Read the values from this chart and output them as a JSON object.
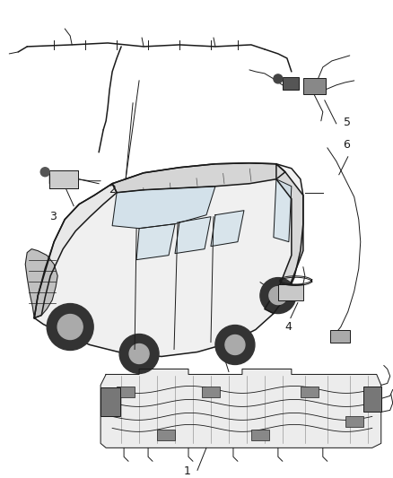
{
  "background_color": "#ffffff",
  "line_color": "#1a1a1a",
  "label_color": "#1a1a1a",
  "figsize": [
    4.38,
    5.33
  ],
  "dpi": 100,
  "img_extent": [
    0,
    438,
    0,
    533
  ]
}
